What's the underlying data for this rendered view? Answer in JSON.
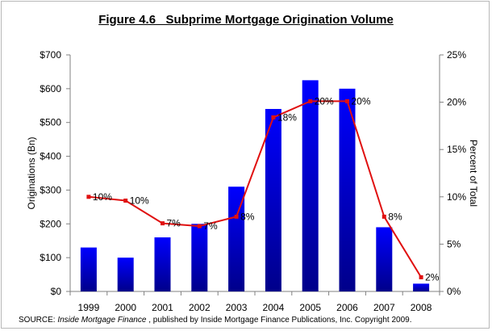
{
  "chart_data": {
    "type": "bar",
    "title": "Figure 4.6   Subprime Mortgage Origination Volume",
    "categories": [
      "1999",
      "2000",
      "2001",
      "2002",
      "2003",
      "2004",
      "2005",
      "2006",
      "2007",
      "2008"
    ],
    "series": [
      {
        "name": "Originations (Bn)",
        "type": "bar",
        "axis": "left",
        "values": [
          130,
          100,
          160,
          200,
          310,
          540,
          625,
          600,
          190,
          23
        ]
      },
      {
        "name": "Percent of Total",
        "type": "line",
        "axis": "right",
        "values": [
          10,
          9.6,
          7.2,
          6.9,
          7.9,
          18.4,
          20.1,
          20.1,
          7.9,
          1.5
        ],
        "labels": [
          "10%",
          "10%",
          "7%",
          "7%",
          "8%",
          "18%",
          "20%",
          "20%",
          "8%",
          "2%"
        ]
      }
    ],
    "ylabel": "Originations (Bn)",
    "y2label": "Percent of Total",
    "ylim": [
      0,
      700
    ],
    "y2lim": [
      0,
      25
    ],
    "yticks": [
      0,
      100,
      200,
      300,
      400,
      500,
      600,
      700
    ],
    "ytick_labels": [
      "$0",
      "$100",
      "$200",
      "$300",
      "$400",
      "$500",
      "$600",
      "$700"
    ],
    "y2ticks": [
      0,
      5,
      10,
      15,
      20,
      25
    ],
    "y2tick_labels": [
      "0%",
      "5%",
      "10%",
      "15%",
      "20%",
      "25%"
    ],
    "grid": false,
    "colors": {
      "bar_top": "#0000ff",
      "bar_bottom": "#00008a",
      "line": "#e01010"
    }
  },
  "source": {
    "prefix": "SOURCE: ",
    "publication": "Inside Mortgage Finance",
    "suffix": " , published by Inside Mortgage Finance Publications, Inc.  Copyright 2009."
  }
}
